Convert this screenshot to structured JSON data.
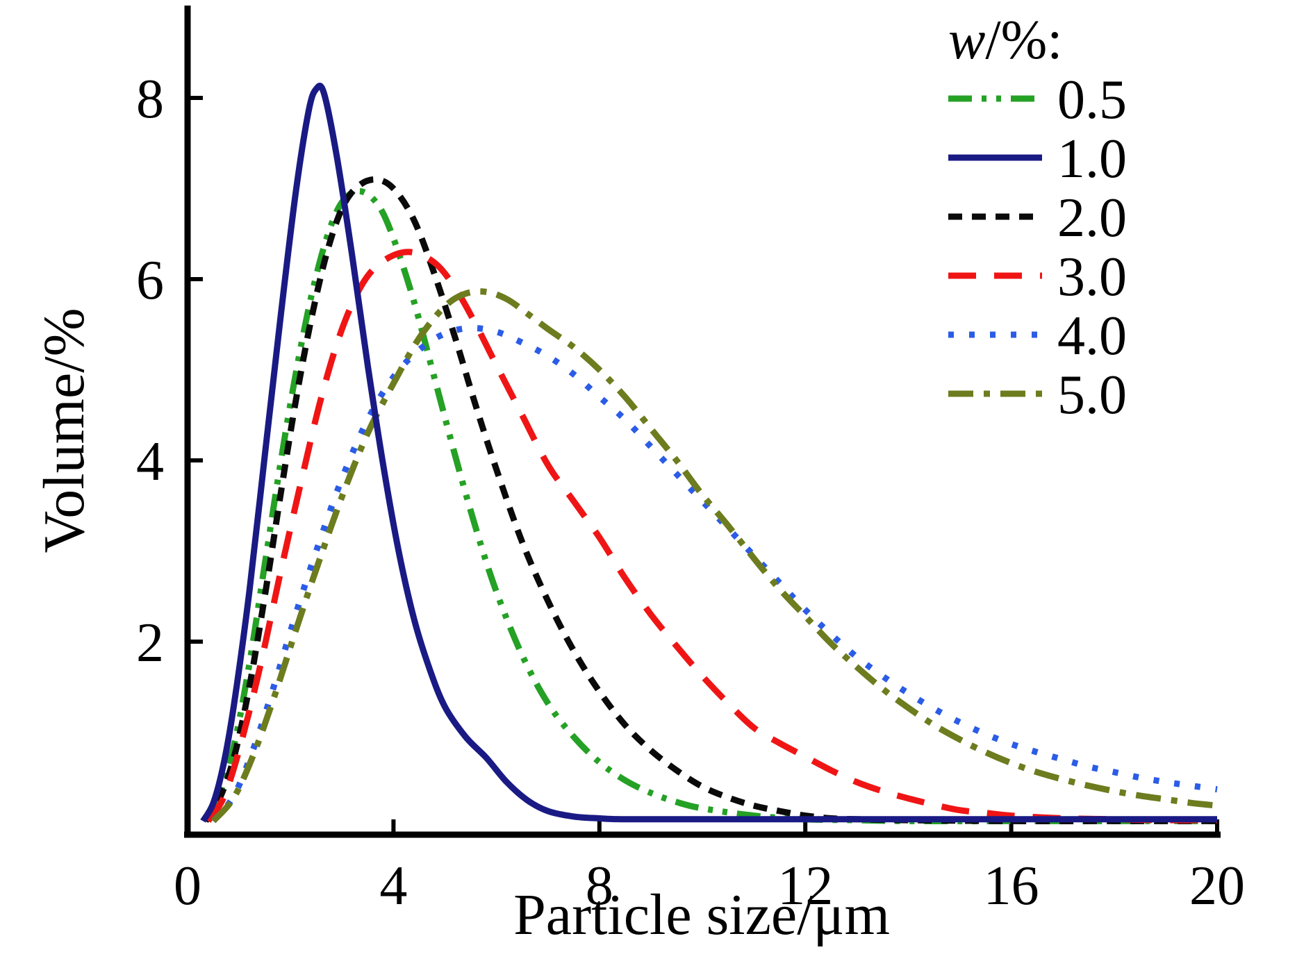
{
  "figure_background": "#ffffff",
  "chart_data": {
    "type": "line",
    "title": "",
    "xlabel": "Particle size/μm",
    "ylabel": "Volume/%",
    "xlim": [
      0,
      20
    ],
    "ylim": [
      0,
      9
    ],
    "grid": false,
    "legend_position": "upper right",
    "legend_title_italic": "w",
    "legend_title_rest": "/%:",
    "x_ticks": [
      0,
      4,
      8,
      12,
      16,
      20
    ],
    "x_tick_labels": [
      "0",
      "4",
      "8",
      "12",
      "16",
      "20"
    ],
    "y_ticks": [
      2,
      4,
      6,
      8
    ],
    "y_tick_labels": [
      "2",
      "4",
      "6",
      "8"
    ],
    "series": [
      {
        "name": "w-0.5",
        "label": "0.5",
        "color": "#25a125",
        "dash": "34 14 7 14 7 14",
        "points": [
          [
            0.35,
            0.02
          ],
          [
            0.6,
            0.28
          ],
          [
            0.9,
            0.85
          ],
          [
            1.2,
            1.75
          ],
          [
            1.5,
            2.85
          ],
          [
            1.8,
            3.95
          ],
          [
            2.1,
            4.95
          ],
          [
            2.4,
            5.8
          ],
          [
            2.7,
            6.45
          ],
          [
            3.0,
            6.85
          ],
          [
            3.35,
            6.97
          ],
          [
            3.7,
            6.82
          ],
          [
            4.0,
            6.45
          ],
          [
            4.4,
            5.75
          ],
          [
            4.8,
            4.9
          ],
          [
            5.2,
            4.05
          ],
          [
            5.6,
            3.25
          ],
          [
            6.0,
            2.55
          ],
          [
            6.5,
            1.85
          ],
          [
            7.0,
            1.32
          ],
          [
            7.5,
            0.95
          ],
          [
            8.0,
            0.67
          ],
          [
            8.5,
            0.47
          ],
          [
            9.0,
            0.33
          ],
          [
            9.5,
            0.23
          ],
          [
            10.0,
            0.16
          ],
          [
            11.0,
            0.08
          ],
          [
            12.0,
            0.04
          ],
          [
            13.0,
            0.03
          ],
          [
            14.0,
            0.02
          ],
          [
            16.0,
            0.02
          ],
          [
            18.0,
            0.02
          ],
          [
            20.0,
            0.02
          ]
        ]
      },
      {
        "name": "w-2.0",
        "label": "2.0",
        "color": "#0a0a0a",
        "dash": "20 14",
        "points": [
          [
            0.35,
            0.02
          ],
          [
            0.6,
            0.24
          ],
          [
            0.9,
            0.72
          ],
          [
            1.2,
            1.5
          ],
          [
            1.5,
            2.5
          ],
          [
            1.8,
            3.6
          ],
          [
            2.1,
            4.65
          ],
          [
            2.4,
            5.55
          ],
          [
            2.7,
            6.28
          ],
          [
            3.0,
            6.78
          ],
          [
            3.3,
            7.02
          ],
          [
            3.65,
            7.1
          ],
          [
            4.0,
            7.0
          ],
          [
            4.4,
            6.65
          ],
          [
            4.8,
            6.05
          ],
          [
            5.2,
            5.35
          ],
          [
            5.6,
            4.6
          ],
          [
            6.0,
            3.9
          ],
          [
            6.5,
            3.1
          ],
          [
            7.0,
            2.45
          ],
          [
            7.5,
            1.9
          ],
          [
            8.0,
            1.45
          ],
          [
            8.5,
            1.08
          ],
          [
            9.0,
            0.8
          ],
          [
            9.5,
            0.58
          ],
          [
            10.0,
            0.4
          ],
          [
            10.5,
            0.28
          ],
          [
            11.0,
            0.19
          ],
          [
            11.5,
            0.13
          ],
          [
            12.0,
            0.08
          ],
          [
            12.5,
            0.05
          ],
          [
            13.0,
            0.04
          ],
          [
            14.0,
            0.03
          ],
          [
            16.0,
            0.02
          ],
          [
            18.0,
            0.02
          ],
          [
            20.0,
            0.02
          ]
        ]
      },
      {
        "name": "w-3.0",
        "label": "3.0",
        "color": "#f01515",
        "dash": "40 26",
        "points": [
          [
            0.4,
            0.02
          ],
          [
            0.7,
            0.28
          ],
          [
            1.0,
            0.8
          ],
          [
            1.4,
            1.7
          ],
          [
            1.8,
            2.75
          ],
          [
            2.2,
            3.75
          ],
          [
            2.6,
            4.7
          ],
          [
            3.0,
            5.45
          ],
          [
            3.4,
            5.95
          ],
          [
            3.8,
            6.2
          ],
          [
            4.3,
            6.3
          ],
          [
            4.8,
            6.18
          ],
          [
            5.2,
            5.9
          ],
          [
            5.6,
            5.5
          ],
          [
            6.0,
            5.05
          ],
          [
            6.5,
            4.5
          ],
          [
            7.0,
            3.95
          ],
          [
            7.5,
            3.55
          ],
          [
            8.0,
            3.15
          ],
          [
            8.5,
            2.7
          ],
          [
            9.0,
            2.3
          ],
          [
            9.5,
            1.95
          ],
          [
            10.0,
            1.62
          ],
          [
            10.5,
            1.32
          ],
          [
            11.0,
            1.05
          ],
          [
            11.5,
            0.88
          ],
          [
            12.0,
            0.73
          ],
          [
            12.5,
            0.58
          ],
          [
            13.0,
            0.45
          ],
          [
            13.5,
            0.35
          ],
          [
            14.0,
            0.27
          ],
          [
            14.5,
            0.2
          ],
          [
            15.0,
            0.14
          ],
          [
            15.5,
            0.11
          ],
          [
            16.0,
            0.08
          ],
          [
            17.0,
            0.05
          ],
          [
            18.0,
            0.04
          ],
          [
            19.0,
            0.03
          ],
          [
            20.0,
            0.03
          ]
        ]
      },
      {
        "name": "w-4.0",
        "label": "4.0",
        "color": "#2b5ce6",
        "dash": "8 22",
        "points": [
          [
            0.5,
            0.02
          ],
          [
            0.9,
            0.3
          ],
          [
            1.3,
            0.85
          ],
          [
            1.7,
            1.55
          ],
          [
            2.1,
            2.3
          ],
          [
            2.5,
            3.0
          ],
          [
            3.0,
            3.8
          ],
          [
            3.5,
            4.45
          ],
          [
            4.0,
            4.92
          ],
          [
            4.5,
            5.22
          ],
          [
            5.0,
            5.4
          ],
          [
            5.5,
            5.46
          ],
          [
            6.0,
            5.42
          ],
          [
            6.5,
            5.3
          ],
          [
            7.0,
            5.15
          ],
          [
            7.5,
            4.95
          ],
          [
            8.0,
            4.7
          ],
          [
            8.5,
            4.45
          ],
          [
            9.0,
            4.15
          ],
          [
            9.5,
            3.85
          ],
          [
            10.0,
            3.55
          ],
          [
            10.5,
            3.25
          ],
          [
            11.0,
            2.95
          ],
          [
            11.5,
            2.65
          ],
          [
            12.0,
            2.35
          ],
          [
            12.5,
            2.08
          ],
          [
            13.0,
            1.83
          ],
          [
            13.5,
            1.62
          ],
          [
            14.0,
            1.43
          ],
          [
            14.5,
            1.26
          ],
          [
            15.0,
            1.11
          ],
          [
            15.5,
            0.98
          ],
          [
            16.0,
            0.87
          ],
          [
            16.5,
            0.78
          ],
          [
            17.0,
            0.7
          ],
          [
            17.5,
            0.62
          ],
          [
            18.0,
            0.56
          ],
          [
            18.5,
            0.5
          ],
          [
            19.0,
            0.45
          ],
          [
            19.5,
            0.41
          ],
          [
            20.0,
            0.37
          ]
        ]
      },
      {
        "name": "w-5.0",
        "label": "5.0",
        "color": "#6d7c1e",
        "dash": "36 15 9 15",
        "points": [
          [
            0.5,
            0.02
          ],
          [
            0.9,
            0.28
          ],
          [
            1.3,
            0.78
          ],
          [
            1.7,
            1.42
          ],
          [
            2.1,
            2.12
          ],
          [
            2.5,
            2.8
          ],
          [
            3.0,
            3.6
          ],
          [
            3.5,
            4.3
          ],
          [
            4.0,
            4.85
          ],
          [
            4.5,
            5.35
          ],
          [
            5.0,
            5.7
          ],
          [
            5.4,
            5.84
          ],
          [
            5.8,
            5.86
          ],
          [
            6.2,
            5.78
          ],
          [
            6.6,
            5.62
          ],
          [
            7.0,
            5.45
          ],
          [
            7.5,
            5.25
          ],
          [
            8.0,
            5.0
          ],
          [
            8.5,
            4.7
          ],
          [
            9.0,
            4.35
          ],
          [
            9.5,
            4.0
          ],
          [
            10.0,
            3.62
          ],
          [
            10.5,
            3.28
          ],
          [
            11.0,
            2.92
          ],
          [
            11.5,
            2.58
          ],
          [
            12.0,
            2.28
          ],
          [
            12.5,
            1.98
          ],
          [
            13.0,
            1.72
          ],
          [
            13.5,
            1.48
          ],
          [
            14.0,
            1.27
          ],
          [
            14.5,
            1.08
          ],
          [
            15.0,
            0.92
          ],
          [
            15.5,
            0.78
          ],
          [
            16.0,
            0.66
          ],
          [
            16.5,
            0.56
          ],
          [
            17.0,
            0.48
          ],
          [
            17.5,
            0.41
          ],
          [
            18.0,
            0.35
          ],
          [
            18.5,
            0.3
          ],
          [
            19.0,
            0.26
          ],
          [
            19.5,
            0.22
          ],
          [
            20.0,
            0.19
          ]
        ]
      },
      {
        "name": "w-1.0",
        "label": "1.0",
        "color": "#1a1a85",
        "dash": "",
        "points": [
          [
            0.3,
            0.02
          ],
          [
            0.5,
            0.22
          ],
          [
            0.7,
            0.65
          ],
          [
            0.9,
            1.3
          ],
          [
            1.2,
            2.55
          ],
          [
            1.5,
            4.05
          ],
          [
            1.8,
            5.55
          ],
          [
            2.1,
            6.95
          ],
          [
            2.35,
            7.85
          ],
          [
            2.5,
            8.1
          ],
          [
            2.65,
            8.05
          ],
          [
            2.9,
            7.35
          ],
          [
            3.2,
            6.25
          ],
          [
            3.5,
            5.05
          ],
          [
            3.8,
            3.95
          ],
          [
            4.1,
            3.0
          ],
          [
            4.4,
            2.25
          ],
          [
            4.7,
            1.7
          ],
          [
            5.0,
            1.28
          ],
          [
            5.4,
            0.95
          ],
          [
            5.8,
            0.72
          ],
          [
            6.2,
            0.45
          ],
          [
            6.6,
            0.25
          ],
          [
            7.0,
            0.13
          ],
          [
            7.5,
            0.07
          ],
          [
            8.0,
            0.05
          ],
          [
            8.5,
            0.04
          ],
          [
            10.0,
            0.04
          ],
          [
            12.0,
            0.04
          ],
          [
            14.0,
            0.04
          ],
          [
            16.0,
            0.04
          ],
          [
            18.0,
            0.04
          ],
          [
            20.0,
            0.04
          ]
        ]
      }
    ],
    "legend_order": [
      "w-0.5",
      "w-1.0",
      "w-2.0",
      "w-3.0",
      "w-4.0",
      "w-5.0"
    ]
  }
}
